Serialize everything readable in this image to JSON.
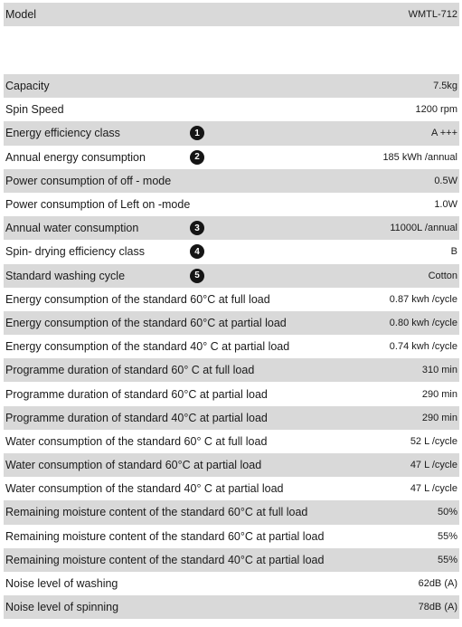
{
  "model": {
    "label": "Model",
    "value": "WMTL-712"
  },
  "rows": [
    {
      "label": "Capacity",
      "value": "7.5kg",
      "shaded": true
    },
    {
      "label": "Spin Speed",
      "value": "1200 rpm",
      "shaded": false
    },
    {
      "label": "Energy efficiency class",
      "value": "A +++",
      "shaded": true,
      "badge": "1"
    },
    {
      "label": "Annual energy consumption",
      "value": "185 kWh /annual",
      "shaded": false,
      "badge": "2"
    },
    {
      "label": "Power consumption of off - mode",
      "value": "0.5W",
      "shaded": true
    },
    {
      "label": "Power consumption of  Left on -mode",
      "value": "1.0W",
      "shaded": false
    },
    {
      "label": "Annual water consumption",
      "value": "11000L /annual",
      "shaded": true,
      "badge": "3"
    },
    {
      "label": "Spin- drying efficiency class",
      "value": "B",
      "shaded": false,
      "badge": "4"
    },
    {
      "label": "Standard washing cycle",
      "value": "Cotton",
      "shaded": true,
      "badge": "5"
    },
    {
      "label": "Energy consumption of the standard 60°C at full load",
      "value": "0.87 kwh /cycle",
      "shaded": false
    },
    {
      "label": "Energy consumption of the standard 60°C at partial load",
      "value": "0.80 kwh /cycle",
      "shaded": true
    },
    {
      "label": "Energy consumption of the standard 40° C at partial load",
      "value": "0.74 kwh /cycle",
      "shaded": false
    },
    {
      "label": "Programme duration of standard  60° C at full load",
      "value": "310 min",
      "shaded": true
    },
    {
      "label": "Programme duration of standard  60°C at partial load",
      "value": "290 min",
      "shaded": false
    },
    {
      "label": "Programme duration of standard  40°C at partial load",
      "value": "290 min",
      "shaded": true
    },
    {
      "label": "Water consumption of the standard 60° C at full load",
      "value": "52 L /cycle",
      "shaded": false
    },
    {
      "label": "Water consumption of standard 60°C at partial load",
      "value": "47 L /cycle",
      "shaded": true
    },
    {
      "label": "Water consumption of the standard 40° C at partial load",
      "value": "47 L /cycle",
      "shaded": false
    },
    {
      "label": "Remaining moisture content of the standard 60°C at full load",
      "value": "50%",
      "shaded": true
    },
    {
      "label": "Remaining moisture content of the standard 60°C at  partial load",
      "value": "55%",
      "shaded": false
    },
    {
      "label": "Remaining moisture content of the standard 40°C at partial load",
      "value": "55%",
      "shaded": true
    },
    {
      "label": "Noise level of washing",
      "value": "62dB (A)",
      "shaded": false
    },
    {
      "label": "Noise level of spinning",
      "value": "78dB (A)",
      "shaded": true
    }
  ]
}
